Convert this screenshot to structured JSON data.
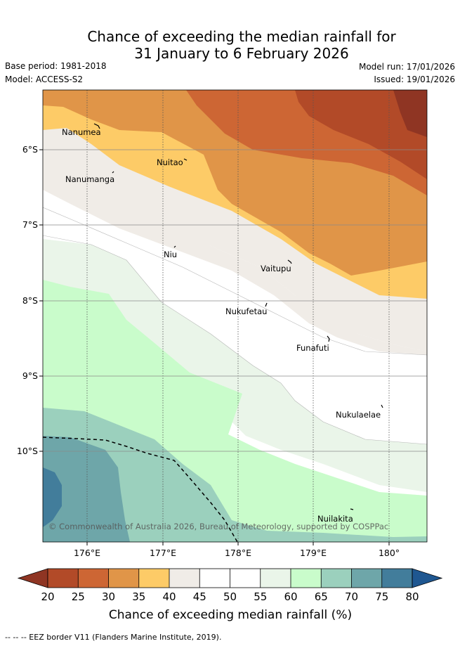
{
  "title": {
    "line1": "Chance of exceeding the median rainfall for",
    "line2": "31 January to 6 February 2026"
  },
  "meta": {
    "base_period": "Base period: 1981-2018",
    "model": "Model: ACCESS-S2",
    "model_run": "Model run: 17/01/2026",
    "issued": "Issued: 19/01/2026"
  },
  "axes": {
    "lon_ticks": [
      "176°E",
      "177°E",
      "178°E",
      "179°E",
      "180°"
    ],
    "lat_ticks": [
      "6°S",
      "7°S",
      "8°S",
      "9°S",
      "10°S"
    ]
  },
  "places": [
    "Nanumea",
    "Nuitao",
    "Nanumanga",
    "Niu",
    "Vaitupu",
    "Nukufetau",
    "Funafuti",
    "Nukulaelae",
    "Nuilakita"
  ],
  "copyright": "© Commonwealth of Australia 2026, Bureau of Meteorology, supported by COSPPac",
  "colorbar": {
    "ticks": [
      "20",
      "25",
      "30",
      "35",
      "40",
      "45",
      "50",
      "55",
      "60",
      "65",
      "70",
      "75",
      "80"
    ],
    "colors": [
      "#8f3523",
      "#b24a28",
      "#cd6634",
      "#e09548",
      "#fdcb67",
      "#f0ece7",
      "#ffffff",
      "#ffffff",
      "#eaf5e9",
      "#c9fccb",
      "#9bd0bd",
      "#6ea6a9",
      "#427d9b",
      "#1f5791"
    ],
    "label": "Chance of exceeding median rainfall (%)"
  },
  "footer": "-- -- -- EEZ border V11 (Flanders Marine Institute, 2019)."
}
